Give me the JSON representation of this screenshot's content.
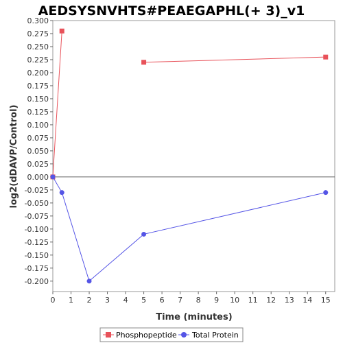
{
  "chart_data": {
    "type": "line",
    "title": "AEDSYSNVHTS#PEAEGAPHL(+ 3)_v1",
    "xlabel": "Time (minutes)",
    "ylabel": "log2(dDAVP/Control)",
    "xlim": [
      0,
      15.5
    ],
    "ylim": [
      -0.22,
      0.3
    ],
    "x_ticks": [
      0,
      1,
      2,
      3,
      4,
      5,
      6,
      7,
      8,
      9,
      10,
      11,
      12,
      13,
      14,
      15
    ],
    "y_ticks": [
      0.3,
      0.275,
      0.25,
      0.225,
      0.2,
      0.175,
      0.15,
      0.125,
      0.1,
      0.075,
      0.05,
      0.025,
      0.0,
      -0.025,
      -0.05,
      -0.075,
      -0.1,
      -0.125,
      -0.15,
      -0.175,
      -0.2
    ],
    "grid": false,
    "zero_line": true,
    "legend_position": "bottom",
    "series": [
      {
        "name": "Phosphopeptide",
        "color": "#e8525a",
        "marker": "square",
        "segments": [
          [
            {
              "x": 0,
              "y": 0.0
            },
            {
              "x": 0.5,
              "y": 0.28
            }
          ],
          [
            {
              "x": 5,
              "y": 0.22
            },
            {
              "x": 15,
              "y": 0.23
            }
          ]
        ]
      },
      {
        "name": "Total Protein",
        "color": "#5555e6",
        "marker": "circle",
        "segments": [
          [
            {
              "x": 0,
              "y": 0.0
            },
            {
              "x": 0.5,
              "y": -0.03
            },
            {
              "x": 2,
              "y": -0.2
            },
            {
              "x": 5,
              "y": -0.11
            },
            {
              "x": 15,
              "y": -0.03
            }
          ]
        ]
      }
    ]
  }
}
